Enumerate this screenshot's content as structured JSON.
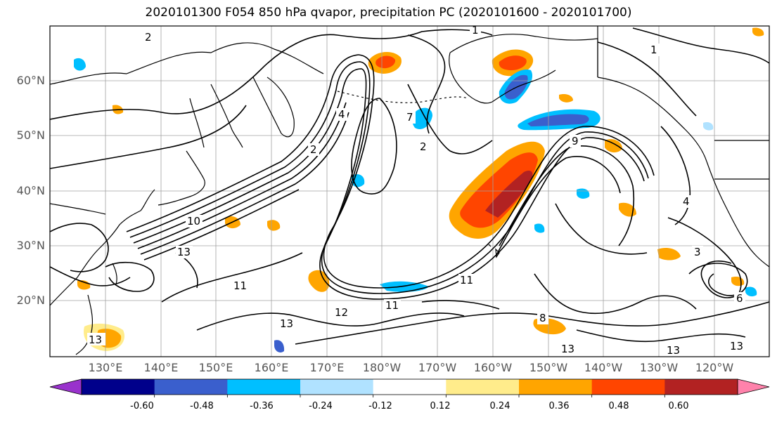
{
  "title": "2020101300 F054 850 hPa qvapor, precipitation PC (2020101600 - 2020101700)",
  "lat_labels": [
    "60°N",
    "50°N",
    "40°N",
    "30°N",
    "20°N"
  ],
  "lon_labels": [
    "130°E",
    "140°E",
    "150°E",
    "160°E",
    "170°E",
    "180°W",
    "170°W",
    "160°W",
    "150°W",
    "140°W",
    "130°W",
    "120°W"
  ],
  "colorbar": {
    "ticks": [
      "-0.60",
      "-0.48",
      "-0.36",
      "-0.24",
      "-0.12",
      "0.12",
      "0.24",
      "0.36",
      "0.48",
      "0.60"
    ],
    "colors": [
      "#9932cc",
      "#00008b",
      "#3a5fcd",
      "#00bfff",
      "#b0e2ff",
      "#ffffff",
      "#ffec8b",
      "#ffa500",
      "#ff4500",
      "#b22222",
      "#ff82ab"
    ]
  },
  "contour_labels": [
    {
      "text": "2"
    },
    {
      "text": "1"
    },
    {
      "text": "1"
    },
    {
      "text": "9"
    },
    {
      "text": "7"
    },
    {
      "text": "2"
    },
    {
      "text": "4"
    },
    {
      "text": "2"
    },
    {
      "text": "10"
    },
    {
      "text": "13"
    },
    {
      "text": "11"
    },
    {
      "text": "12"
    },
    {
      "text": "11"
    },
    {
      "text": "13"
    },
    {
      "text": "13"
    },
    {
      "text": "13"
    },
    {
      "text": "11"
    },
    {
      "text": "8"
    },
    {
      "text": "6"
    },
    {
      "text": "4"
    },
    {
      "text": "3"
    },
    {
      "text": "13"
    },
    {
      "text": "13"
    }
  ]
}
